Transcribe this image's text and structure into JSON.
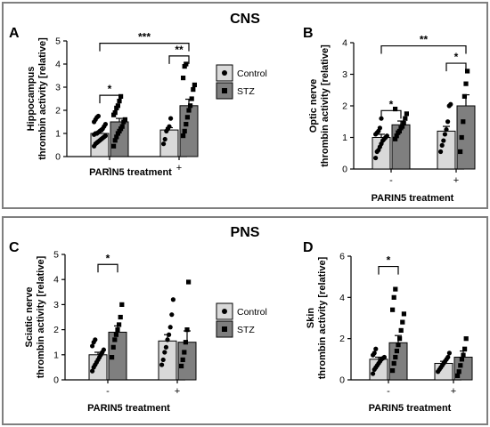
{
  "figure": {
    "section_top_title": "CNS",
    "section_bottom_title": "PNS",
    "legend": {
      "entries": [
        {
          "label": "Control",
          "fill": "#d9d9d9"
        },
        {
          "label": "STZ",
          "fill": "#7f7f7f"
        }
      ]
    },
    "colors": {
      "control": "#d9d9d9",
      "stz": "#7f7f7f",
      "frame": "#7f7f7f"
    }
  },
  "chart_data": [
    {
      "panel": "A",
      "type": "bar",
      "ylabel_lines": [
        "Hippocampus",
        "thrombin activity [relative]"
      ],
      "xlabel": "PARIN5 treatment",
      "categories": [
        "-",
        "+"
      ],
      "ylim": [
        0,
        5
      ],
      "yticks": [
        0,
        1,
        2,
        3,
        4,
        5
      ],
      "series": [
        {
          "name": "Control",
          "values": [
            1.0,
            1.15
          ],
          "errors": [
            0.08,
            0.1
          ],
          "points": [
            [
              0.45,
              0.55,
              0.6,
              0.65,
              0.7,
              0.75,
              0.8,
              0.85,
              0.9,
              0.95,
              1.0,
              1.0,
              1.05,
              1.1,
              1.15,
              1.2,
              1.3,
              1.4,
              1.5,
              1.6,
              1.7,
              1.75
            ],
            [
              0.55,
              0.75,
              1.1,
              1.2,
              1.3,
              1.65
            ]
          ]
        },
        {
          "name": "STZ",
          "values": [
            1.5,
            2.2
          ],
          "errors": [
            0.15,
            0.28
          ],
          "points": [
            [
              0.45,
              0.7,
              0.85,
              1.0,
              1.1,
              1.2,
              1.3,
              1.5,
              1.6,
              1.8,
              1.9,
              2.1,
              2.2,
              2.4,
              2.6
            ],
            [
              0.9,
              1.1,
              1.4,
              1.7,
              2.0,
              2.2,
              2.5,
              2.9,
              3.1,
              3.4,
              3.9,
              4.0
            ]
          ]
        }
      ],
      "significance": [
        {
          "from": "0-0",
          "to": "0-1",
          "label": "*",
          "y": 2.65
        },
        {
          "from": "1-0",
          "to": "1-1",
          "label": "**",
          "y": 4.35
        },
        {
          "from": "0-0",
          "to": "1-1",
          "label": "***",
          "y": 4.9
        }
      ]
    },
    {
      "panel": "B",
      "type": "bar",
      "ylabel_lines": [
        "Optic nerve",
        "thrombin activity [relative]"
      ],
      "xlabel": "PARIN5 treatment",
      "categories": [
        "-",
        "+"
      ],
      "ylim": [
        0,
        4
      ],
      "yticks": [
        0,
        1,
        2,
        3,
        4
      ],
      "series": [
        {
          "name": "Control",
          "values": [
            1.0,
            1.2
          ],
          "errors": [
            0.1,
            0.15
          ],
          "points": [
            [
              0.35,
              0.55,
              0.6,
              0.7,
              0.8,
              0.9,
              0.95,
              1.0,
              1.05,
              1.1,
              1.15,
              1.2,
              1.3,
              1.6
            ],
            [
              0.55,
              0.75,
              0.9,
              1.1,
              1.25,
              1.5,
              2.0,
              2.05
            ]
          ]
        },
        {
          "name": "STZ",
          "values": [
            1.4,
            2.0
          ],
          "errors": [
            0.12,
            0.35
          ],
          "points": [
            [
              0.95,
              1.05,
              1.15,
              1.2,
              1.3,
              1.35,
              1.45,
              1.6,
              1.75,
              1.9
            ],
            [
              0.55,
              1.0,
              1.5,
              2.3,
              2.7,
              3.1
            ]
          ]
        }
      ],
      "significance": [
        {
          "from": "0-0",
          "to": "0-1",
          "label": "*",
          "y": 1.85
        },
        {
          "from": "1-0",
          "to": "1-1",
          "label": "*",
          "y": 3.35
        },
        {
          "from": "0-0",
          "to": "1-1",
          "label": "**",
          "y": 3.9
        }
      ]
    },
    {
      "panel": "C",
      "type": "bar",
      "ylabel_lines": [
        "Sciatic nerve",
        "thrombin activity [relative]"
      ],
      "xlabel": "PARIN5 treatment",
      "categories": [
        "-",
        "+"
      ],
      "ylim": [
        0,
        5
      ],
      "yticks": [
        0,
        1,
        2,
        3,
        4,
        5
      ],
      "series": [
        {
          "name": "Control",
          "values": [
            1.0,
            1.55
          ],
          "errors": [
            0.1,
            0.25
          ],
          "points": [
            [
              0.35,
              0.5,
              0.6,
              0.7,
              0.8,
              0.9,
              1.0,
              1.1,
              1.2,
              1.35,
              1.5,
              1.6
            ],
            [
              0.6,
              0.8,
              1.1,
              1.3,
              1.6,
              1.8,
              2.1,
              2.6,
              3.2
            ]
          ]
        },
        {
          "name": "STZ",
          "values": [
            1.9,
            1.5
          ],
          "errors": [
            0.25,
            0.45
          ],
          "points": [
            [
              0.9,
              1.3,
              1.6,
              1.8,
              2.0,
              2.2,
              2.5,
              3.0
            ],
            [
              0.55,
              0.8,
              1.1,
              1.5,
              2.0,
              3.9
            ]
          ]
        }
      ],
      "significance": [
        {
          "from": "0-0",
          "to": "0-1",
          "label": "*",
          "y": 4.6
        }
      ]
    },
    {
      "panel": "D",
      "type": "bar",
      "ylabel_lines": [
        "Skin",
        "thrombin activity [relative]"
      ],
      "xlabel": "PARIN5 treatment",
      "categories": [
        "-",
        "+"
      ],
      "ylim": [
        0,
        6
      ],
      "yticks": [
        0,
        2,
        4,
        6
      ],
      "series": [
        {
          "name": "Control",
          "values": [
            1.0,
            0.8
          ],
          "errors": [
            0.1,
            0.1
          ],
          "points": [
            [
              0.3,
              0.5,
              0.6,
              0.7,
              0.8,
              0.9,
              1.0,
              1.05,
              1.1,
              1.2,
              1.3,
              1.5
            ],
            [
              0.4,
              0.5,
              0.6,
              0.7,
              0.8,
              0.9,
              1.0,
              1.1,
              1.3
            ]
          ]
        },
        {
          "name": "STZ",
          "values": [
            1.8,
            1.1
          ],
          "errors": [
            0.35,
            0.3
          ],
          "points": [
            [
              0.45,
              0.8,
              1.1,
              1.4,
              1.7,
              2.0,
              2.4,
              2.8,
              3.2,
              3.4,
              4.0,
              4.4
            ],
            [
              0.2,
              0.4,
              0.7,
              1.0,
              1.2,
              1.5,
              2.0
            ]
          ]
        }
      ],
      "significance": [
        {
          "from": "0-0",
          "to": "0-1",
          "label": "*",
          "y": 5.5
        }
      ]
    }
  ]
}
